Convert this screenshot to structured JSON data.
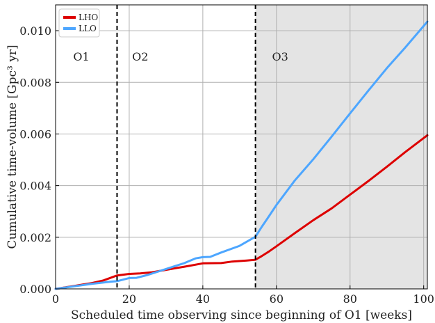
{
  "chart_data": {
    "type": "line",
    "title": "",
    "xlabel": "Scheduled time observing since beginning of O1 [weeks]",
    "ylabel": "Cumulative time-volume [Gpc³ yr]",
    "xlim": [
      0,
      101
    ],
    "ylim": [
      0,
      0.011
    ],
    "x_ticks": [
      0,
      20,
      40,
      60,
      80,
      100
    ],
    "y_ticks": [
      0.0,
      0.002,
      0.004,
      0.006,
      0.008,
      0.01
    ],
    "x_tick_labels": [
      "0",
      "20",
      "40",
      "60",
      "80",
      "100"
    ],
    "y_tick_labels": [
      "0.000",
      "0.002",
      "0.004",
      "0.006",
      "0.008",
      "0.010"
    ],
    "grid": true,
    "legend_position": "top-left",
    "run_boundaries": [
      16.7,
      54.3
    ],
    "shaded_region": [
      54.3,
      101
    ],
    "period_labels": [
      {
        "text": "O1",
        "x": 7,
        "y": 0.009
      },
      {
        "text": "O2",
        "x": 23,
        "y": 0.009
      },
      {
        "text": "O3",
        "x": 61,
        "y": 0.009
      }
    ],
    "series": [
      {
        "name": "LHO",
        "color": "#dd0000",
        "x": [
          0,
          5,
          10,
          13,
          16.7,
          20,
          23,
          26,
          30,
          35,
          40,
          45,
          48,
          52,
          54.3,
          56,
          58,
          60,
          65,
          70,
          75,
          80,
          85,
          90,
          95,
          101
        ],
        "y": [
          0,
          0.00011,
          0.00023,
          0.00033,
          0.00052,
          0.00058,
          0.0006,
          0.00064,
          0.00074,
          0.00086,
          0.00099,
          0.001,
          0.00106,
          0.0011,
          0.00113,
          0.00127,
          0.00145,
          0.00165,
          0.00216,
          0.00266,
          0.00312,
          0.00365,
          0.00418,
          0.00473,
          0.0053,
          0.00595
        ]
      },
      {
        "name": "LLO",
        "color": "#4da6ff",
        "x": [
          0,
          5,
          10,
          15,
          16.7,
          20,
          22,
          25,
          30,
          35,
          38,
          40,
          42,
          45,
          50,
          54.3,
          56,
          58,
          60,
          65,
          70,
          75,
          80,
          85,
          90,
          95,
          101
        ],
        "y": [
          0,
          0.0001,
          0.0002,
          0.00028,
          0.0003,
          0.00042,
          0.00043,
          0.00054,
          0.00077,
          0.001,
          0.00118,
          0.00123,
          0.00124,
          0.00141,
          0.00167,
          0.00202,
          0.0024,
          0.00282,
          0.00325,
          0.0042,
          0.00502,
          0.0059,
          0.0068,
          0.00768,
          0.00855,
          0.00935,
          0.01035
        ]
      }
    ]
  }
}
